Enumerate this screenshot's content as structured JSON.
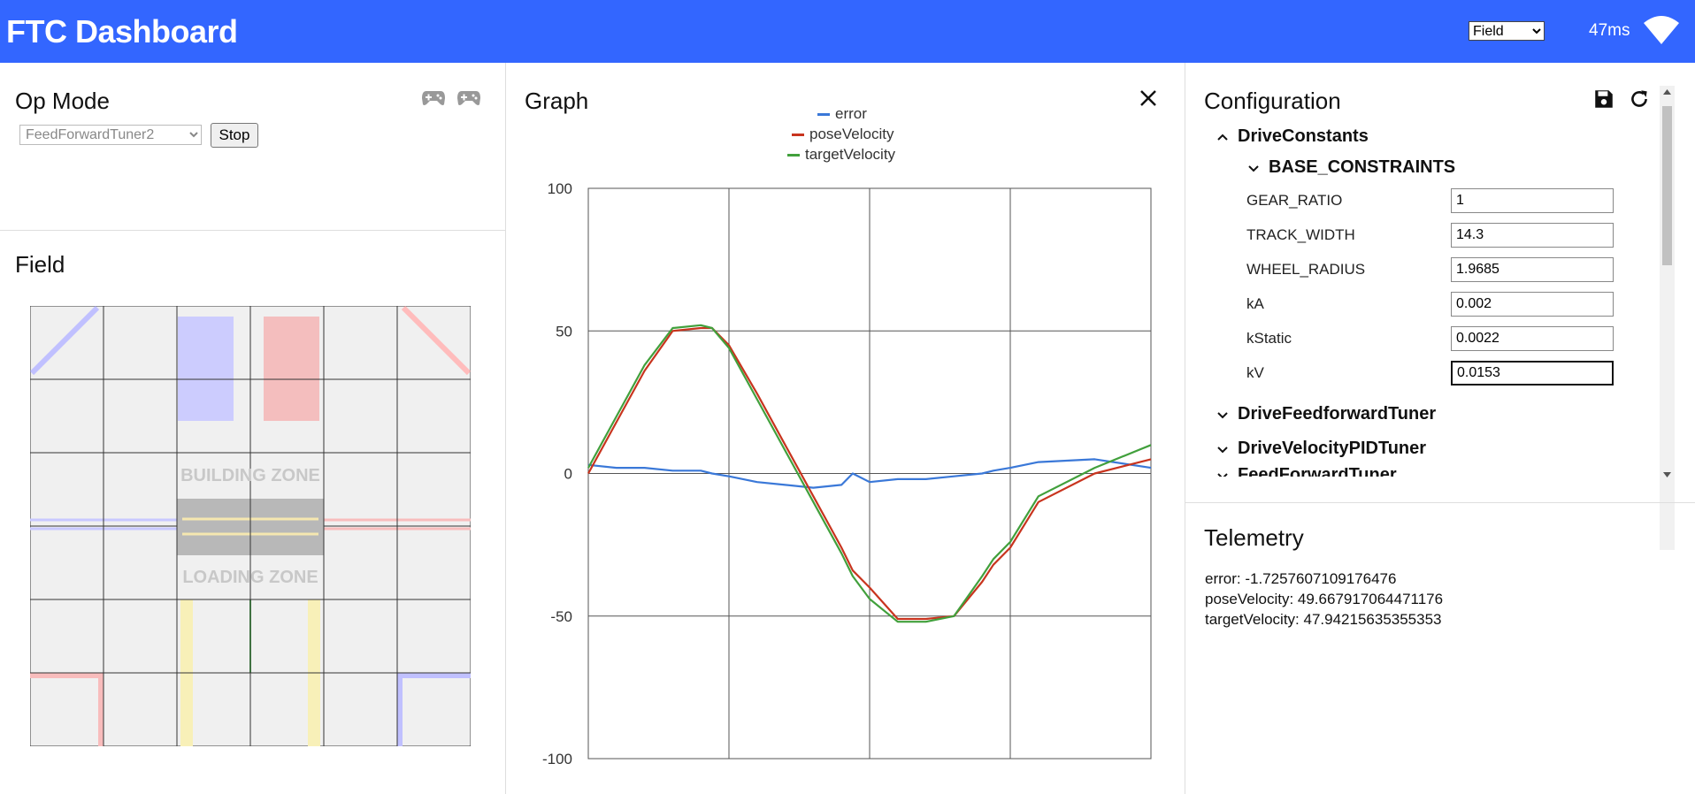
{
  "header": {
    "title": "FTC Dashboard",
    "layout_selected": "Field",
    "latency": "47ms"
  },
  "opmode": {
    "title": "Op Mode",
    "selected": "FeedForwardTuner2",
    "stop_label": "Stop"
  },
  "field": {
    "title": "Field",
    "building_zone": "BUILDING ZONE",
    "loading_zone": "LOADING ZONE"
  },
  "graph": {
    "title": "Graph"
  },
  "chart_data": {
    "type": "line",
    "title": "",
    "xlabel": "",
    "ylabel": "",
    "ylim": [
      -100,
      100
    ],
    "yticks": [
      "100",
      "50",
      "0",
      "-50",
      "-100"
    ],
    "x": [
      0,
      5,
      10,
      15,
      20,
      22,
      25,
      30,
      35,
      40,
      45,
      47,
      50,
      55,
      60,
      65,
      70,
      72,
      75,
      80,
      90,
      100
    ],
    "legend_position": "top-center",
    "grid": true,
    "series": [
      {
        "name": "error",
        "color": "#3a78d8",
        "values": [
          3,
          2,
          2,
          1,
          1,
          0,
          -1,
          -3,
          -4,
          -5,
          -4,
          0,
          -3,
          -2,
          -2,
          -1,
          0,
          1,
          2,
          4,
          5,
          2
        ]
      },
      {
        "name": "poseVelocity",
        "color": "#c8341e",
        "values": [
          0,
          18,
          36,
          50,
          51,
          51,
          45,
          28,
          10,
          -8,
          -26,
          -34,
          -40,
          -51,
          -51,
          -50,
          -38,
          -32,
          -26,
          -10,
          0,
          5
        ]
      },
      {
        "name": "targetVelocity",
        "color": "#41a03c",
        "values": [
          2,
          20,
          38,
          51,
          52,
          51,
          44,
          26,
          8,
          -10,
          -28,
          -36,
          -44,
          -52,
          -52,
          -50,
          -36,
          -30,
          -24,
          -8,
          2,
          10
        ]
      }
    ]
  },
  "config": {
    "title": "Configuration",
    "groups": [
      "DriveConstants",
      "BASE_CONSTRAINTS",
      "DriveFeedforwardTuner",
      "DriveVelocityPIDTuner",
      "FeedForwardTuner"
    ],
    "fields": [
      {
        "label": "GEAR_RATIO",
        "value": "1"
      },
      {
        "label": "TRACK_WIDTH",
        "value": "14.3"
      },
      {
        "label": "WHEEL_RADIUS",
        "value": "1.9685"
      },
      {
        "label": "kA",
        "value": "0.002"
      },
      {
        "label": "kStatic",
        "value": "0.0022"
      },
      {
        "label": "kV",
        "value": "0.0153"
      }
    ]
  },
  "telemetry": {
    "title": "Telemetry",
    "lines": [
      "error: -1.7257607109176476",
      "poseVelocity: 49.667917064471176",
      "targetVelocity: 47.94215635355353"
    ]
  }
}
